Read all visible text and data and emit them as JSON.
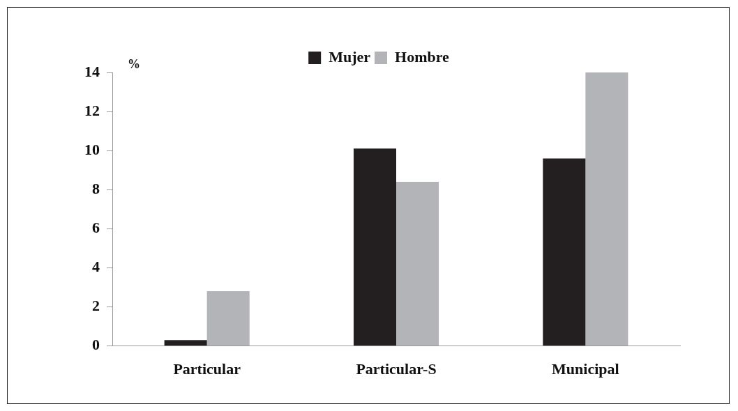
{
  "chart_data": {
    "type": "bar",
    "ylabel": "%",
    "categories": [
      "Particular",
      "Particular-S",
      "Municipal"
    ],
    "series": [
      {
        "name": "Mujer",
        "color": "#231f20",
        "values": [
          0.3,
          10.1,
          9.6
        ]
      },
      {
        "name": "Hombre",
        "color": "#b3b4b7",
        "values": [
          2.8,
          8.4,
          14.0
        ]
      }
    ],
    "ylim": [
      0,
      14
    ],
    "yticks": [
      0,
      2,
      4,
      6,
      8,
      10,
      12,
      14
    ],
    "grid": false,
    "legend": "top"
  }
}
